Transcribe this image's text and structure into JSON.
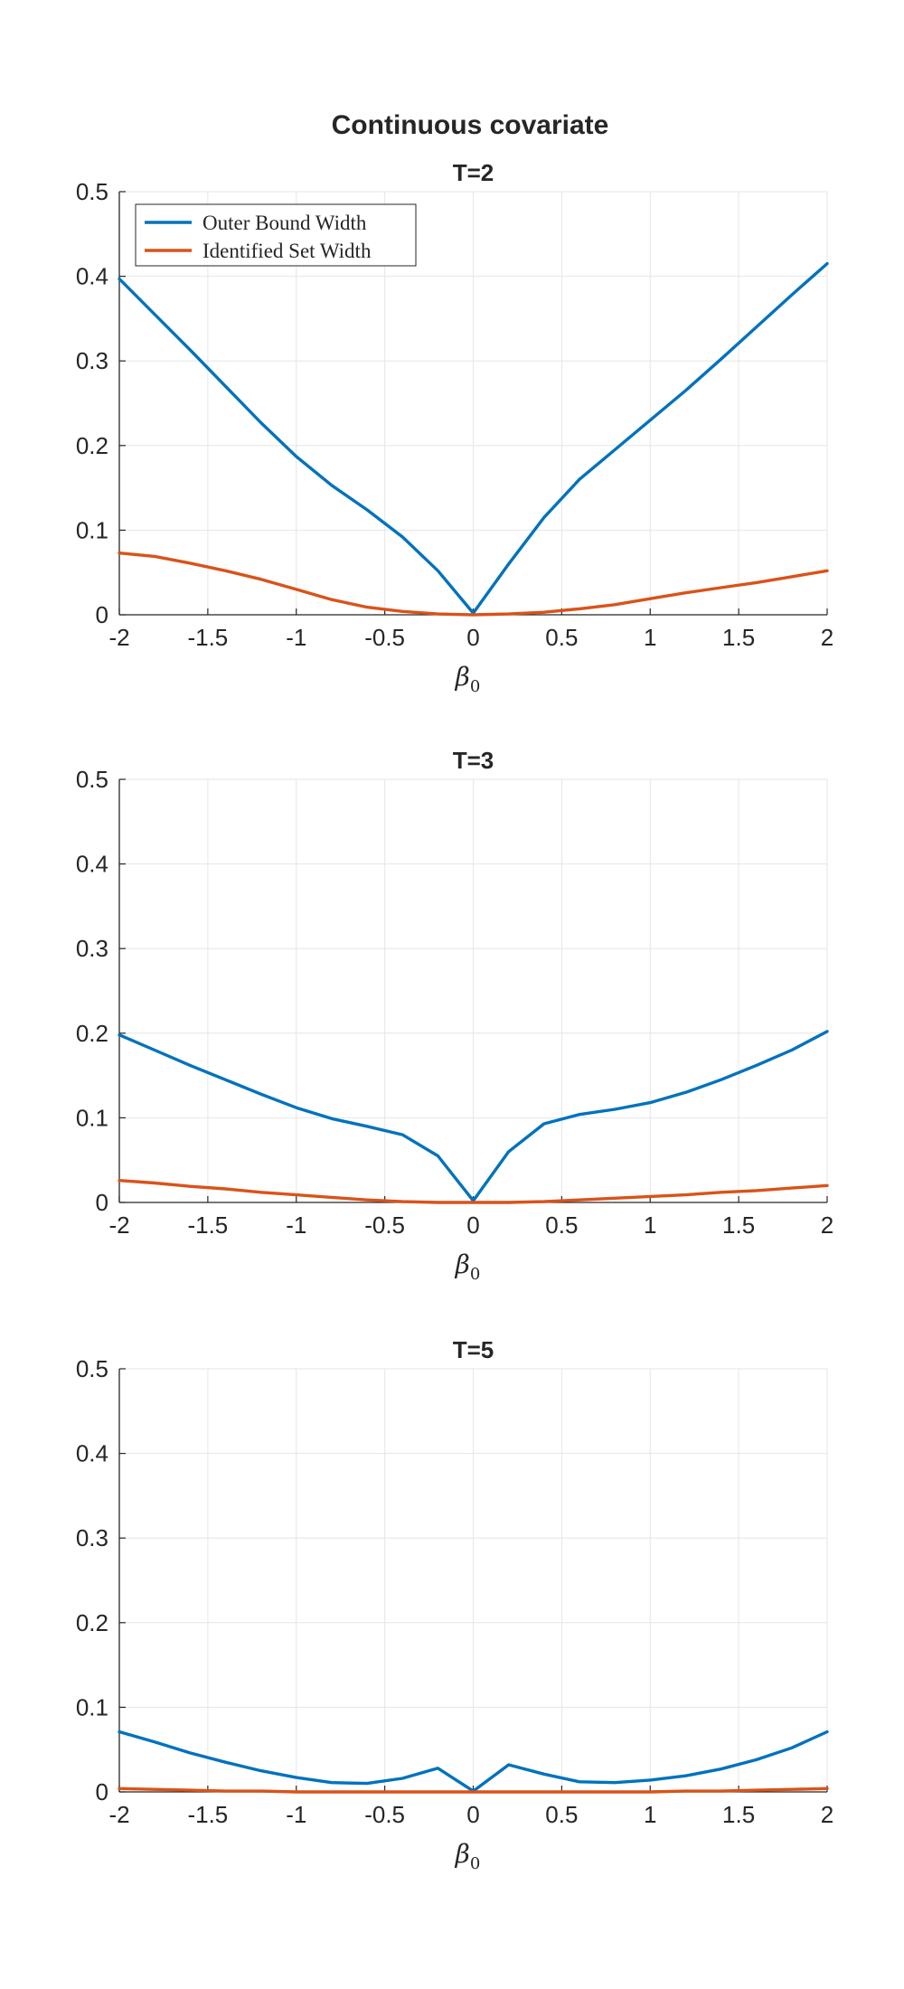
{
  "figure_title": "Continuous covariate",
  "colors": {
    "series1": "#0072BD",
    "series2": "#D95319",
    "grid": "#e6e6e6",
    "axis": "#262626"
  },
  "legend": {
    "location": "top-left",
    "entries": [
      "Outer Bound Width",
      "Identified Set Width"
    ]
  },
  "chart_data": [
    {
      "type": "line",
      "title": "T=2",
      "xlabel": "β0",
      "ylabel": "",
      "xlim": [
        -2,
        2
      ],
      "ylim": [
        0,
        0.5
      ],
      "xticks": [
        -2,
        -1.5,
        -1,
        -0.5,
        0,
        0.5,
        1,
        1.5,
        2
      ],
      "xtick_labels": [
        "-2",
        "-1.5",
        "-1",
        "-0.5",
        "0",
        "0.5",
        "1",
        "1.5",
        "2"
      ],
      "yticks": [
        0,
        0.1,
        0.2,
        0.3,
        0.4,
        0.5
      ],
      "ytick_labels": [
        "0",
        "0.1",
        "0.2",
        "0.3",
        "0.4",
        "0.5"
      ],
      "grid": true,
      "show_legend": true,
      "x": [
        -2,
        -1.8,
        -1.6,
        -1.4,
        -1.2,
        -1.0,
        -0.8,
        -0.6,
        -0.4,
        -0.2,
        0,
        0.2,
        0.4,
        0.6,
        0.8,
        1.0,
        1.2,
        1.4,
        1.6,
        1.8,
        2.0
      ],
      "series": [
        {
          "name": "Outer Bound Width",
          "values": [
            0.397,
            0.355,
            0.313,
            0.27,
            0.227,
            0.187,
            0.153,
            0.124,
            0.092,
            0.052,
            0.002,
            0.06,
            0.115,
            0.16,
            0.195,
            0.23,
            0.265,
            0.302,
            0.34,
            0.378,
            0.415
          ]
        },
        {
          "name": "Identified Set Width",
          "values": [
            0.073,
            0.069,
            0.061,
            0.052,
            0.042,
            0.03,
            0.018,
            0.009,
            0.004,
            0.001,
            0.0,
            0.001,
            0.003,
            0.007,
            0.012,
            0.019,
            0.026,
            0.032,
            0.038,
            0.045,
            0.052
          ]
        }
      ]
    },
    {
      "type": "line",
      "title": "T=3",
      "xlabel": "β0",
      "ylabel": "",
      "xlim": [
        -2,
        2
      ],
      "ylim": [
        0,
        0.5
      ],
      "xticks": [
        -2,
        -1.5,
        -1,
        -0.5,
        0,
        0.5,
        1,
        1.5,
        2
      ],
      "xtick_labels": [
        "-2",
        "-1.5",
        "-1",
        "-0.5",
        "0",
        "0.5",
        "1",
        "1.5",
        "2"
      ],
      "yticks": [
        0,
        0.1,
        0.2,
        0.3,
        0.4,
        0.5
      ],
      "ytick_labels": [
        "0",
        "0.1",
        "0.2",
        "0.3",
        "0.4",
        "0.5"
      ],
      "grid": true,
      "show_legend": false,
      "x": [
        -2,
        -1.8,
        -1.6,
        -1.4,
        -1.2,
        -1.0,
        -0.8,
        -0.6,
        -0.4,
        -0.2,
        0,
        0.2,
        0.4,
        0.6,
        0.8,
        1.0,
        1.2,
        1.4,
        1.6,
        1.8,
        2.0
      ],
      "series": [
        {
          "name": "Outer Bound Width",
          "values": [
            0.198,
            0.18,
            0.162,
            0.145,
            0.128,
            0.112,
            0.099,
            0.09,
            0.08,
            0.055,
            0.002,
            0.06,
            0.093,
            0.104,
            0.11,
            0.118,
            0.13,
            0.145,
            0.162,
            0.18,
            0.202
          ]
        },
        {
          "name": "Identified Set Width",
          "values": [
            0.026,
            0.023,
            0.019,
            0.016,
            0.012,
            0.009,
            0.006,
            0.003,
            0.001,
            0.0,
            0.0,
            0.0,
            0.001,
            0.003,
            0.005,
            0.007,
            0.009,
            0.012,
            0.014,
            0.017,
            0.02
          ]
        }
      ]
    },
    {
      "type": "line",
      "title": "T=5",
      "xlabel": "β0",
      "ylabel": "",
      "xlim": [
        -2,
        2
      ],
      "ylim": [
        0,
        0.5
      ],
      "xticks": [
        -2,
        -1.5,
        -1,
        -0.5,
        0,
        0.5,
        1,
        1.5,
        2
      ],
      "xtick_labels": [
        "-2",
        "-1.5",
        "-1",
        "-0.5",
        "0",
        "0.5",
        "1",
        "1.5",
        "2"
      ],
      "yticks": [
        0,
        0.1,
        0.2,
        0.3,
        0.4,
        0.5
      ],
      "ytick_labels": [
        "0",
        "0.1",
        "0.2",
        "0.3",
        "0.4",
        "0.5"
      ],
      "grid": true,
      "show_legend": false,
      "x": [
        -2,
        -1.8,
        -1.6,
        -1.4,
        -1.2,
        -1.0,
        -0.8,
        -0.6,
        -0.4,
        -0.2,
        0,
        0.2,
        0.4,
        0.6,
        0.8,
        1.0,
        1.2,
        1.4,
        1.6,
        1.8,
        2.0
      ],
      "series": [
        {
          "name": "Outer Bound Width",
          "values": [
            0.071,
            0.059,
            0.046,
            0.035,
            0.025,
            0.017,
            0.011,
            0.01,
            0.016,
            0.028,
            0.001,
            0.032,
            0.021,
            0.012,
            0.011,
            0.014,
            0.019,
            0.027,
            0.038,
            0.052,
            0.071
          ]
        },
        {
          "name": "Identified Set Width",
          "values": [
            0.004,
            0.003,
            0.002,
            0.001,
            0.001,
            0.0,
            0.0,
            0.0,
            0.0,
            0.0,
            0.0,
            0.0,
            0.0,
            0.0,
            0.0,
            0.0,
            0.001,
            0.001,
            0.002,
            0.003,
            0.004
          ]
        }
      ]
    }
  ]
}
